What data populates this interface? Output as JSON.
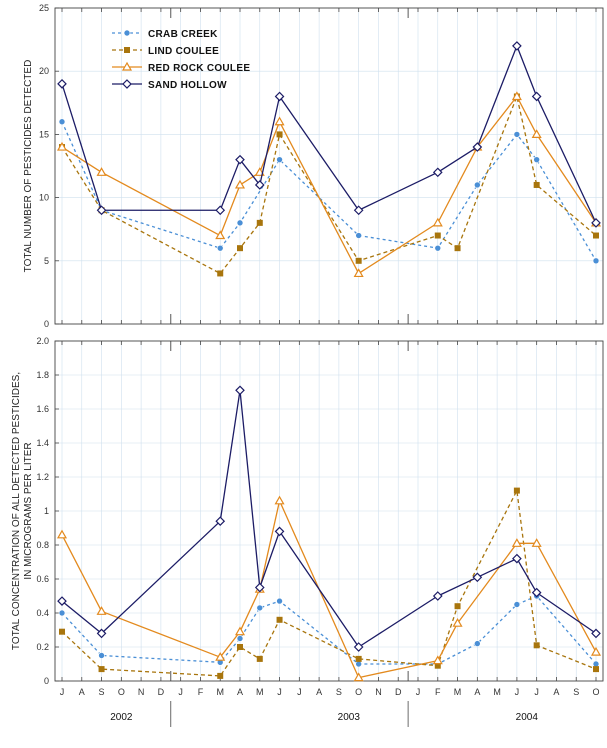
{
  "chart_data": {
    "type": "line",
    "x_tick_labels": [
      "J",
      "A",
      "S",
      "O",
      "N",
      "D",
      "J",
      "F",
      "M",
      "A",
      "M",
      "J",
      "J",
      "A",
      "S",
      "O",
      "N",
      "D",
      "J",
      "F",
      "M",
      "A",
      "M",
      "J",
      "J",
      "A",
      "S",
      "O"
    ],
    "years": [
      {
        "label": "2002",
        "at": 3
      },
      {
        "label": "2003",
        "at": 14.5
      },
      {
        "label": "2004",
        "at": 23.5
      }
    ],
    "year_dividers": [
      5.5,
      17.5
    ],
    "legend": [
      {
        "name": "CRAB CREEK",
        "color": "#4a8fd6",
        "dash": "3,3",
        "marker": "circle"
      },
      {
        "name": "LIND COULEE",
        "color": "#a8750d",
        "dash": "4,3",
        "marker": "square"
      },
      {
        "name": "RED ROCK COULEE",
        "color": "#e38a1e",
        "dash": "",
        "marker": "triangle"
      },
      {
        "name": "SAND HOLLOW",
        "color": "#1c1c66",
        "dash": "",
        "marker": "diamond"
      }
    ],
    "panels": [
      {
        "id": "top",
        "ylabel": "TOTAL NUMBER OF PESTICIDES DETECTED",
        "ylim": [
          0,
          25
        ],
        "yticks": [
          0,
          5,
          10,
          15,
          20,
          25
        ],
        "ytick_labels": [
          "0",
          "5",
          "10",
          "15",
          "20",
          "25"
        ],
        "series": [
          {
            "name": "CRAB CREEK",
            "points": [
              [
                0,
                16
              ],
              [
                1,
                9
              ],
              [
                4,
                6
              ],
              [
                5,
                8
              ],
              [
                6.5,
                13
              ],
              [
                8,
                7
              ],
              [
                10.5,
                6
              ],
              [
                12,
                11
              ],
              [
                13,
                15
              ],
              [
                13.8,
                13
              ],
              [
                15,
                5
              ]
            ]
          },
          {
            "name": "LIND COULEE",
            "points": [
              [
                0,
                14
              ],
              [
                1,
                9
              ],
              [
                4,
                4
              ],
              [
                5,
                6
              ],
              [
                5.5,
                8
              ],
              [
                6.5,
                15
              ],
              [
                8,
                5
              ],
              [
                10,
                7
              ],
              [
                11,
                6
              ],
              [
                13,
                18
              ],
              [
                13.8,
                11
              ],
              [
                15,
                7
              ]
            ]
          },
          {
            "name": "RED ROCK COULEE",
            "points": [
              [
                0,
                14
              ],
              [
                1,
                12
              ],
              [
                4,
                7
              ],
              [
                5,
                11
              ],
              [
                5.5,
                12
              ],
              [
                6.5,
                16
              ],
              [
                8,
                4
              ],
              [
                10,
                8
              ],
              [
                12,
                14
              ],
              [
                13,
                18
              ],
              [
                13.8,
                15
              ],
              [
                15,
                8
              ]
            ]
          },
          {
            "name": "SAND HOLLOW",
            "points": [
              [
                0,
                19
              ],
              [
                1,
                9
              ],
              [
                4,
                9
              ],
              [
                5,
                13
              ],
              [
                5.5,
                11
              ],
              [
                6.5,
                18
              ],
              [
                8,
                9
              ],
              [
                10,
                12
              ],
              [
                12,
                14
              ],
              [
                13,
                22
              ],
              [
                13.8,
                18
              ],
              [
                15,
                8
              ]
            ]
          }
        ]
      },
      {
        "id": "bottom",
        "ylabel_lines": [
          "TOTAL CONCENTRATION OF ALL DETECTED PESTICIDES,",
          "IN MICROGRAMS PER LITER"
        ],
        "ylim": [
          0,
          2.0
        ],
        "yticks": [
          0,
          0.2,
          0.4,
          0.6,
          0.8,
          1,
          1.2,
          1.4,
          1.6,
          1.8,
          2.0
        ],
        "ytick_labels": [
          "0",
          "0.2",
          "0.4",
          "0.6",
          "0.8",
          "1",
          "1.2",
          "1.4",
          "1.6",
          "1.8",
          "2.0"
        ],
        "series": [
          {
            "name": "CRAB CREEK",
            "points": [
              [
                0,
                0.4
              ],
              [
                1,
                0.15
              ],
              [
                4,
                0.11
              ],
              [
                5,
                0.25
              ],
              [
                5.5,
                0.43
              ],
              [
                6.5,
                0.47
              ],
              [
                8,
                0.1
              ],
              [
                10,
                0.1
              ],
              [
                12,
                0.22
              ],
              [
                13,
                0.45
              ],
              [
                13.8,
                0.5
              ],
              [
                15,
                0.1
              ]
            ]
          },
          {
            "name": "LIND COULEE",
            "points": [
              [
                0,
                0.29
              ],
              [
                1,
                0.07
              ],
              [
                4,
                0.03
              ],
              [
                5,
                0.2
              ],
              [
                5.5,
                0.13
              ],
              [
                6.5,
                0.36
              ],
              [
                8,
                0.13
              ],
              [
                10,
                0.09
              ],
              [
                11,
                0.44
              ],
              [
                13,
                1.12
              ],
              [
                13.8,
                0.21
              ],
              [
                15,
                0.07
              ]
            ]
          },
          {
            "name": "RED ROCK COULEE",
            "points": [
              [
                0,
                0.86
              ],
              [
                1,
                0.41
              ],
              [
                4,
                0.14
              ],
              [
                5,
                0.29
              ],
              [
                5.5,
                0.54
              ],
              [
                6.5,
                1.06
              ],
              [
                8,
                0.02
              ],
              [
                10,
                0.12
              ],
              [
                11,
                0.34
              ],
              [
                13,
                0.81
              ],
              [
                13.6,
                0.81
              ],
              [
                15,
                0.17
              ]
            ]
          },
          {
            "name": "SAND HOLLOW",
            "points": [
              [
                0,
                0.47
              ],
              [
                1,
                0.28
              ],
              [
                4,
                0.94
              ],
              [
                5,
                1.71
              ],
              [
                5.5,
                0.55
              ],
              [
                6.5,
                0.88
              ],
              [
                8,
                0.2
              ],
              [
                10,
                0.5
              ],
              [
                11.5,
                0.61
              ],
              [
                13,
                0.72
              ],
              [
                13.8,
                0.52
              ],
              [
                15,
                0.28
              ]
            ]
          }
        ]
      }
    ]
  }
}
